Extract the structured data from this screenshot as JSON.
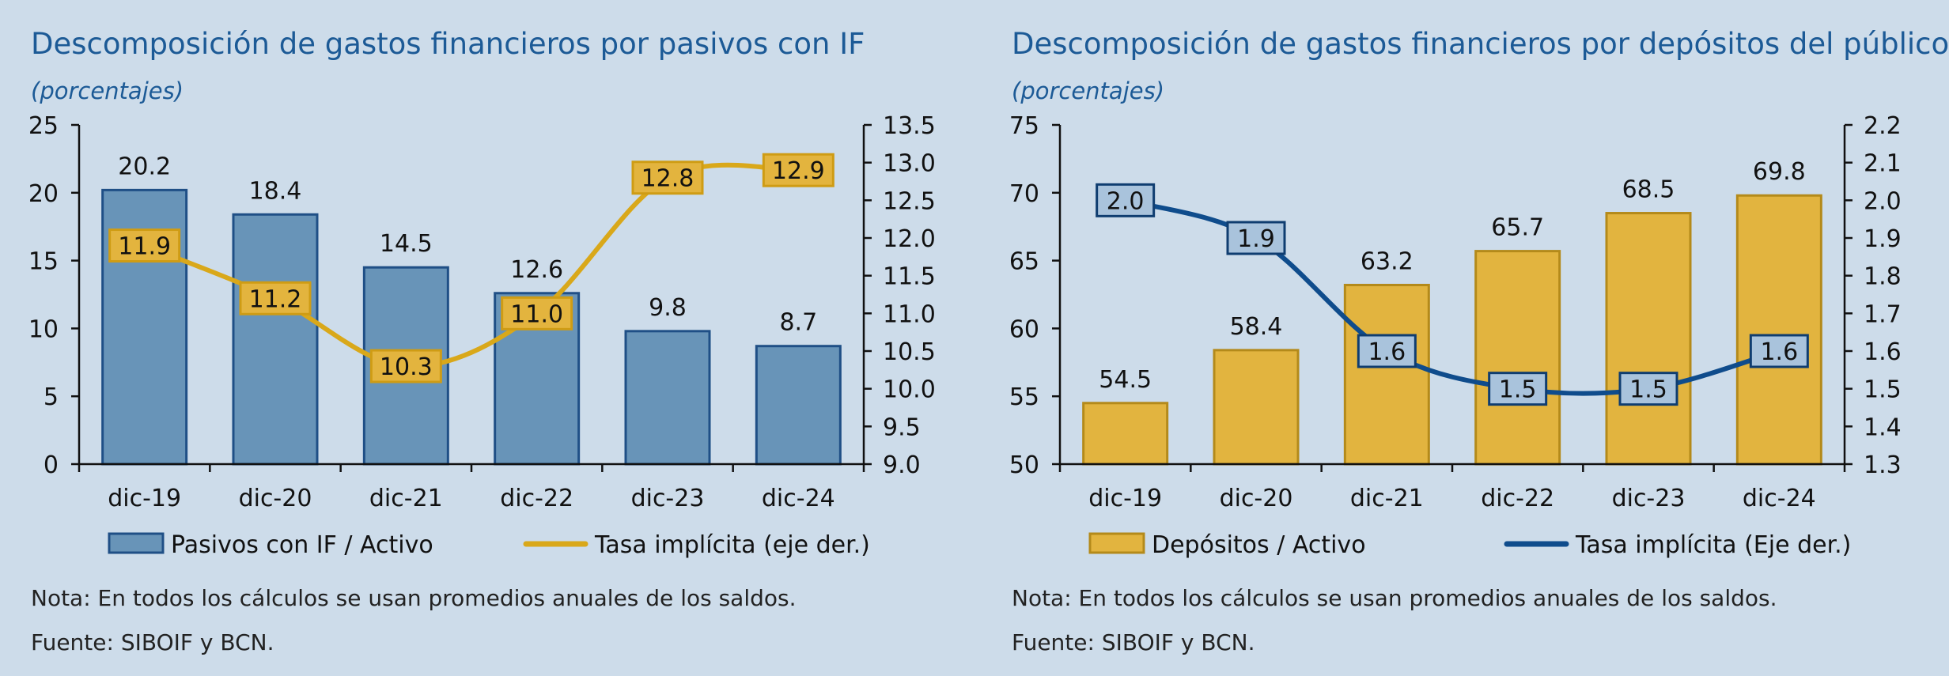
{
  "chart_data": [
    {
      "type": "bar",
      "title": "Descomposición de gastos financieros por pasivos con IF",
      "subtitle": "(porcentajes)",
      "categories": [
        "dic-19",
        "dic-20",
        "dic-21",
        "dic-22",
        "dic-23",
        "dic-24"
      ],
      "series": [
        {
          "name": "Pasivos con IF / Activo",
          "type": "bar",
          "axis": "left",
          "values": [
            20.2,
            18.4,
            14.5,
            12.6,
            9.8,
            8.7
          ]
        },
        {
          "name": "Tasa implícita (eje der.)",
          "type": "line",
          "axis": "right",
          "values": [
            11.9,
            11.2,
            10.3,
            11.0,
            12.8,
            12.9
          ]
        }
      ],
      "ylim": [
        0,
        25
      ],
      "y_ticks": [
        "0",
        "5",
        "10",
        "15",
        "20",
        "25"
      ],
      "y2lim": [
        9.0,
        13.5
      ],
      "y2_ticks": [
        "9.0",
        "9.5",
        "10.0",
        "10.5",
        "11.0",
        "11.5",
        "12.0",
        "12.5",
        "13.0",
        "13.5"
      ],
      "legend": "bottom",
      "grid": false,
      "colors": {
        "bar_fill": "#6894b8",
        "bar_stroke": "#1f4f86",
        "line": "#d9a81a",
        "label_fill": "#e3b43e",
        "label_stroke": "#cf9c14"
      },
      "note": "Nota: En todos los cálculos se usan promedios anuales de los saldos.",
      "source": "Fuente: SIBOIF y BCN."
    },
    {
      "type": "bar",
      "title": "Descomposición de gastos financieros por depósitos del público",
      "subtitle": "(porcentajes)",
      "categories": [
        "dic-19",
        "dic-20",
        "dic-21",
        "dic-22",
        "dic-23",
        "dic-24"
      ],
      "series": [
        {
          "name": "Depósitos / Activo",
          "type": "bar",
          "axis": "left",
          "values": [
            54.5,
            58.4,
            63.2,
            65.7,
            68.5,
            69.8
          ]
        },
        {
          "name": "Tasa implícita (Eje der.)",
          "type": "line",
          "axis": "right",
          "values": [
            2.0,
            1.9,
            1.6,
            1.5,
            1.5,
            1.6
          ]
        }
      ],
      "ylim": [
        50,
        75
      ],
      "y_ticks": [
        "50",
        "55",
        "60",
        "65",
        "70",
        "75"
      ],
      "y2lim": [
        1.3,
        2.2
      ],
      "y2_ticks": [
        "1.3",
        "1.4",
        "1.5",
        "1.6",
        "1.7",
        "1.8",
        "1.9",
        "2.0",
        "2.1",
        "2.2"
      ],
      "legend": "bottom",
      "grid": false,
      "colors": {
        "bar_fill": "#e2b43f",
        "bar_stroke": "#b48a1a",
        "line": "#0f4c8c",
        "label_fill": "#a9c3dc",
        "label_stroke": "#0f3d70"
      },
      "note": "Nota: En todos los cálculos se usan promedios anuales de los saldos.",
      "source": "Fuente: SIBOIF y BCN."
    }
  ]
}
